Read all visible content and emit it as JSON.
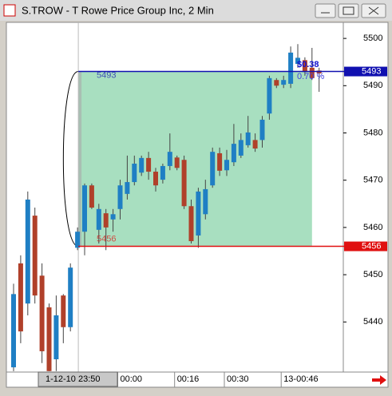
{
  "chart_data": {
    "type": "candlestick",
    "title": "S.TROW - T Rowe Price Group Inc, 2 Min",
    "categories": [
      null,
      null,
      null,
      null,
      null,
      null,
      null,
      null,
      null,
      null,
      null,
      null,
      null,
      null,
      null,
      "00:00",
      null,
      null,
      null,
      null,
      null,
      null,
      null,
      "00:16",
      null,
      null,
      null,
      null,
      null,
      null,
      "00:30",
      null,
      null,
      null,
      null,
      null,
      null,
      null,
      "13-00:46",
      null,
      null,
      null,
      null,
      null
    ],
    "open": [
      5430.4,
      5452.4,
      5443.9,
      5462.5,
      5449.8,
      5443.1,
      5432.1,
      5445.6,
      5438.9,
      5455.7,
      5459.1,
      5468.9,
      5459.5,
      5463.0,
      5461.7,
      5463.9,
      5467.1,
      5469.6,
      5471.6,
      5474.7,
      5471.8,
      5470.1,
      5473.0,
      5474.8,
      5474.3,
      5464.5,
      5458.3,
      5462.8,
      5468.9,
      5475.7,
      5472.1,
      5473.8,
      5475.2,
      5477.4,
      5478.5,
      5478.5,
      5484.1,
      5491.2,
      5490.2,
      5490.4,
      5494.6,
      5495.4,
      5493.8,
      5493.2
    ],
    "high": [
      5448.1,
      5454.1,
      5467.6,
      5464.2,
      5452.4,
      5443.9,
      5445.6,
      5445.9,
      5452.4,
      5460.0,
      5469.3,
      5469.3,
      5465.0,
      5463.9,
      5463.9,
      5470.1,
      5475.2,
      5475.2,
      5475.2,
      5476.0,
      5472.6,
      5473.5,
      5479.9,
      5475.2,
      5475.2,
      5465.9,
      5468.4,
      5470.1,
      5476.9,
      5476.9,
      5476.4,
      5481.9,
      5479.9,
      5483.6,
      5479.9,
      5483.6,
      5492.1,
      5491.6,
      5492.1,
      5498.3,
      5498.8,
      5496.0,
      5498.0,
      5493.8
    ],
    "low": [
      5429.6,
      5435.5,
      5441.4,
      5443.9,
      5431.3,
      5429.6,
      5429.6,
      5435.5,
      5438.0,
      5455.2,
      5454.1,
      5463.9,
      5456.6,
      5455.2,
      5459.1,
      5461.7,
      5465.9,
      5468.9,
      5470.9,
      5470.1,
      5467.6,
      5469.3,
      5472.1,
      5472.1,
      5463.9,
      5456.6,
      5455.7,
      5461.7,
      5468.4,
      5470.9,
      5470.9,
      5473.0,
      5474.7,
      5476.9,
      5476.0,
      5476.9,
      5482.8,
      5489.5,
      5489.5,
      5489.5,
      5493.8,
      5492.1,
      5491.2,
      5488.7
    ],
    "close": [
      5445.9,
      5438.0,
      5465.9,
      5445.6,
      5433.8,
      5429.6,
      5441.4,
      5438.9,
      5451.5,
      5459.1,
      5468.9,
      5464.2,
      5463.9,
      5460.0,
      5462.8,
      5468.9,
      5469.6,
      5473.5,
      5474.7,
      5471.8,
      5468.9,
      5473.0,
      5476.0,
      5472.6,
      5464.5,
      5457.1,
      5467.6,
      5468.1,
      5476.0,
      5472.0,
      5474.3,
      5477.7,
      5478.5,
      5480.1,
      5476.7,
      5482.8,
      5491.6,
      5490.0,
      5491.2,
      5497.0,
      5495.9,
      5492.9,
      5491.6,
      5492.6
    ],
    "up_color": "#1f7fc4",
    "down_color": "#b0402a",
    "ylim": [
      5429.4,
      5503.4
    ],
    "yticks": [
      5440,
      5450,
      5460,
      5470,
      5480,
      5490,
      5500
    ],
    "levels": [
      {
        "value": 5493,
        "color": "#1010b0"
      },
      {
        "value": 5456,
        "color": "#e01010"
      }
    ],
    "range_color": "#a8dfc0",
    "change_label": "$0.38",
    "percent_label": "0.70 %",
    "cursor_label": "1-12-10 23:50"
  }
}
